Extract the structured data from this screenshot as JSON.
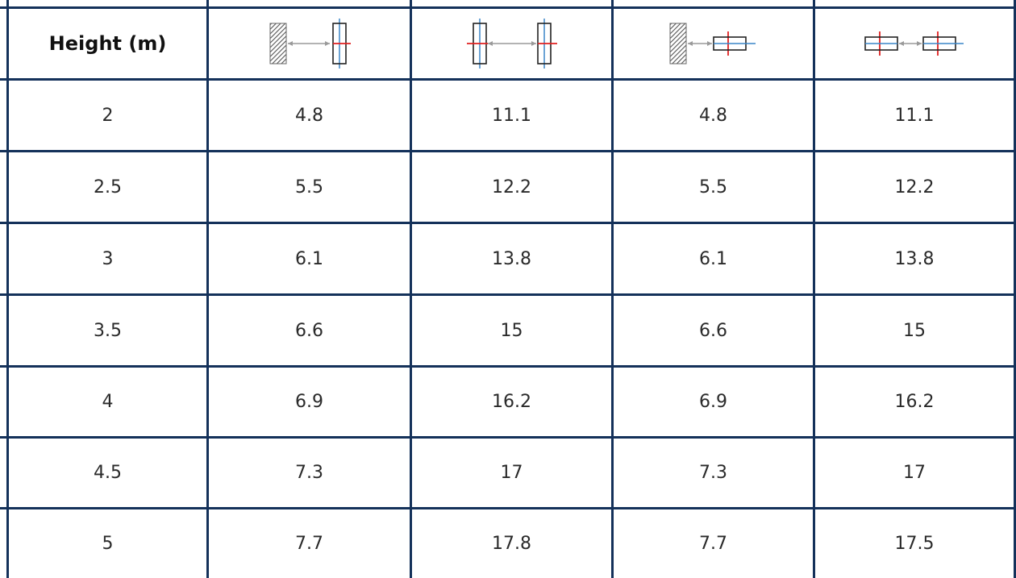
{
  "table": {
    "header": {
      "height_label": "Height (m)",
      "columns": [
        {
          "icon": "wall-to-upright-frame-icon"
        },
        {
          "icon": "upright-to-upright-frame-icon"
        },
        {
          "icon": "wall-to-horizontal-frame-icon"
        },
        {
          "icon": "horizontal-to-horizontal-frame-icon"
        }
      ]
    },
    "rows": [
      {
        "height": "2",
        "values": [
          "4.8",
          "11.1",
          "4.8",
          "11.1"
        ]
      },
      {
        "height": "2.5",
        "values": [
          "5.5",
          "12.2",
          "5.5",
          "12.2"
        ]
      },
      {
        "height": "3",
        "values": [
          "6.1",
          "13.8",
          "6.1",
          "13.8"
        ]
      },
      {
        "height": "3.5",
        "values": [
          "6.6",
          "15",
          "6.6",
          "15"
        ]
      },
      {
        "height": "4",
        "values": [
          "6.9",
          "16.2",
          "6.9",
          "16.2"
        ]
      },
      {
        "height": "4.5",
        "values": [
          "7.3",
          "17",
          "7.3",
          "17"
        ]
      },
      {
        "height": "5",
        "values": [
          "7.7",
          "17.8",
          "7.7",
          "17.5"
        ]
      }
    ]
  },
  "colors": {
    "grid_line": "#14315a",
    "accent_red": "#e02020",
    "accent_blue": "#3a86c8"
  }
}
